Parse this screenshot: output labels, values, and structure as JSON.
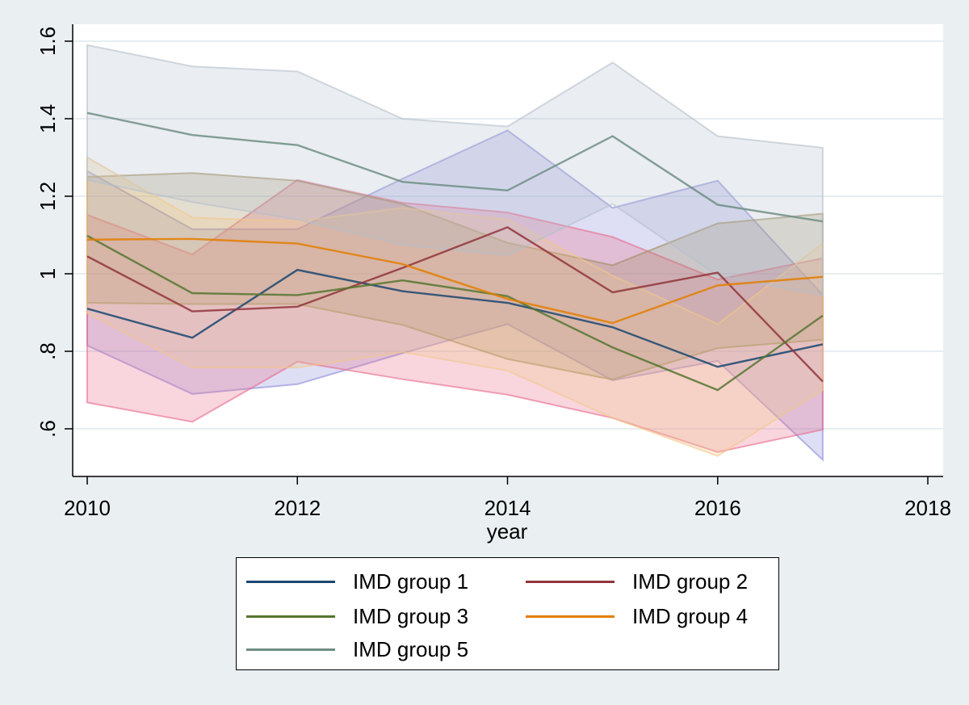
{
  "chart_data": {
    "type": "line",
    "xlabel": "year",
    "ylabel": "",
    "xlim": [
      2010,
      2018
    ],
    "ylim": [
      0.58,
      1.63
    ],
    "x_ticks": [
      2010,
      2012,
      2014,
      2016,
      2018
    ],
    "x_tick_labels": [
      "2010",
      "2012",
      "2014",
      "2016",
      "2018"
    ],
    "y_ticks": [
      0.6,
      0.8,
      1.0,
      1.2,
      1.4,
      1.6
    ],
    "y_tick_labels": [
      ".6",
      ".8",
      "1",
      "1.2",
      "1.4",
      "1.6"
    ],
    "grid": true,
    "legend_position": "bottom",
    "x": [
      2010,
      2011,
      2012,
      2013,
      2014,
      2015,
      2016,
      2017
    ],
    "series": [
      {
        "name": "IMD group 1",
        "color": "#1a476f",
        "band_color": "#8a8ad8",
        "values": [
          0.91,
          0.835,
          1.01,
          0.955,
          0.925,
          0.862,
          0.76,
          0.818
        ],
        "lower": [
          0.815,
          0.69,
          0.715,
          0.795,
          0.87,
          0.725,
          0.775,
          0.52
        ],
        "upper": [
          1.265,
          1.115,
          1.115,
          1.245,
          1.37,
          1.17,
          1.24,
          0.945
        ]
      },
      {
        "name": "IMD group 2",
        "color": "#90353b",
        "band_color": "#e8698a",
        "values": [
          1.045,
          0.903,
          0.915,
          1.015,
          1.12,
          0.952,
          1.003,
          0.722
        ],
        "lower": [
          0.668,
          0.618,
          0.773,
          0.728,
          0.688,
          0.628,
          0.54,
          0.598
        ],
        "upper": [
          1.152,
          1.05,
          1.242,
          1.183,
          1.158,
          1.095,
          0.985,
          1.04
        ]
      },
      {
        "name": "IMD group 3",
        "color": "#55752f",
        "band_color": "#9e8a5a",
        "values": [
          1.098,
          0.95,
          0.945,
          0.983,
          0.942,
          0.81,
          0.7,
          0.892
        ],
        "lower": [
          0.925,
          0.922,
          0.922,
          0.868,
          0.78,
          0.727,
          0.808,
          0.83
        ],
        "upper": [
          1.25,
          1.26,
          1.24,
          1.18,
          1.08,
          1.022,
          1.13,
          1.155
        ]
      },
      {
        "name": "IMD group 4",
        "color": "#e37e00",
        "band_color": "#f1c88a",
        "values": [
          1.088,
          1.09,
          1.078,
          1.025,
          0.935,
          0.873,
          0.97,
          0.992
        ],
        "lower": [
          0.898,
          0.758,
          0.758,
          0.798,
          0.75,
          0.628,
          0.53,
          0.7
        ],
        "upper": [
          1.3,
          1.145,
          1.135,
          1.17,
          1.14,
          0.995,
          0.87,
          1.078
        ]
      },
      {
        "name": "IMD group 5",
        "color": "#6e8e84",
        "band_color": "#b4bfcc",
        "values": [
          1.415,
          1.358,
          1.332,
          1.237,
          1.215,
          1.355,
          1.178,
          1.135
        ],
        "lower": [
          1.242,
          1.185,
          1.14,
          1.075,
          1.048,
          1.18,
          0.995,
          0.945
        ],
        "upper": [
          1.59,
          1.535,
          1.522,
          1.4,
          1.38,
          1.545,
          1.355,
          1.325
        ]
      }
    ]
  }
}
